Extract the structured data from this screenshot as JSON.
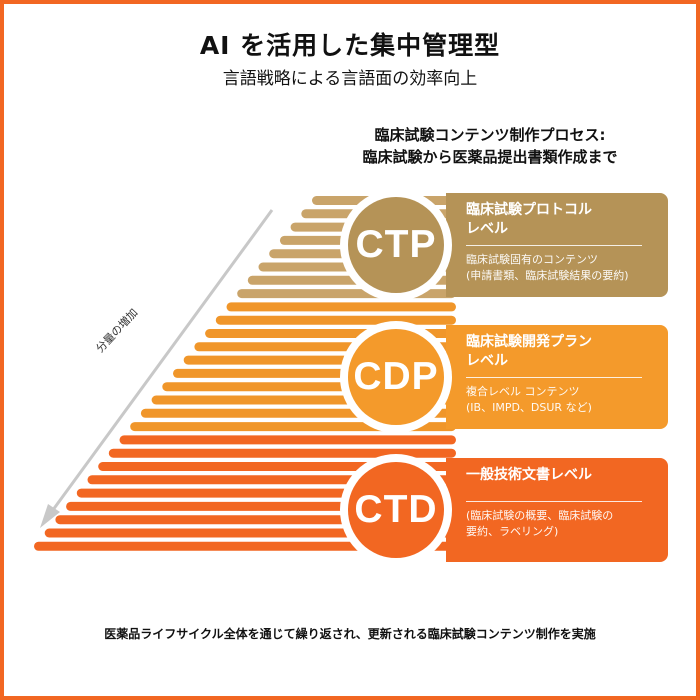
{
  "header": {
    "title": "AI を活用した集中管理型",
    "subtitle": "言語戦略による言語面の効率向上"
  },
  "process": {
    "line1": "臨床試験コンテンツ制作プロセス:",
    "line2": "臨床試験から医薬品提出書類作成まで"
  },
  "arrow_label": "分量の増加",
  "levels": [
    {
      "code": "CTP",
      "title_line1": "臨床試験プロトコル",
      "title_line2": "レベル",
      "desc_line1": "臨床試験固有のコンテンツ",
      "desc_line2": "(申請書類、臨床試験結果の要約)",
      "color": "#b59357"
    },
    {
      "code": "CDP",
      "title_line1": "臨床試験開発プラン",
      "title_line2": "レベル",
      "desc_line1": "複合レベル コンテンツ",
      "desc_line2": "(IB、IMPD、DSUR など)",
      "color": "#f49a2b"
    },
    {
      "code": "CTD",
      "title_line1": "一般技術文書レベル",
      "title_line2": "",
      "desc_line1": "(臨床試験の概要、臨床試験の",
      "desc_line2": "要約、ラベリング)",
      "color": "#f26722"
    }
  ],
  "footer": "医薬品ライフサイクル全体を通じて繰り返され、更新される臨床試験コンテンツ制作を実施",
  "colors": {
    "frame": "#f26722",
    "bar_top": "#c9a46a",
    "bar_mid": "#f0962a",
    "bar_bottom": "#f26722",
    "arrow": "#c8c8c8"
  }
}
